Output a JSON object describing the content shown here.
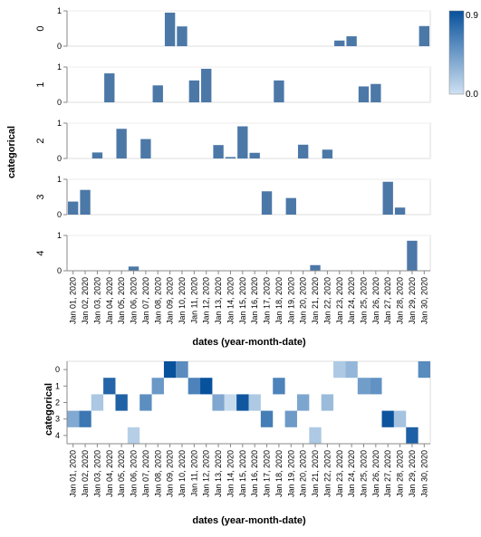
{
  "chart_data": [
    {
      "type": "bar",
      "facet_title": "categorical",
      "xlabel": "dates (year-month-date)",
      "ylim": [
        0,
        1
      ],
      "y_ticks": [
        "0",
        "1"
      ],
      "x": [
        "Jan 01, 2020",
        "Jan 02, 2020",
        "Jan 03, 2020",
        "Jan 04, 2020",
        "Jan 05, 2020",
        "Jan 06, 2020",
        "Jan 07, 2020",
        "Jan 08, 2020",
        "Jan 09, 2020",
        "Jan 10, 2020",
        "Jan 11, 2020",
        "Jan 12, 2020",
        "Jan 13, 2020",
        "Jan 14, 2020",
        "Jan 15, 2020",
        "Jan 16, 2020",
        "Jan 17, 2020",
        "Jan 18, 2020",
        "Jan 19, 2020",
        "Jan 20, 2020",
        "Jan 21, 2020",
        "Jan 22, 2020",
        "Jan 23, 2020",
        "Jan 24, 2020",
        "Jan 25, 2020",
        "Jan 26, 2020",
        "Jan 27, 2020",
        "Jan 28, 2020",
        "Jan 29, 2020",
        "Jan 30, 2020"
      ],
      "series": [
        {
          "name": "0",
          "values": [
            null,
            null,
            null,
            null,
            null,
            null,
            null,
            null,
            0.95,
            0.56,
            null,
            null,
            null,
            null,
            null,
            null,
            null,
            null,
            null,
            null,
            null,
            null,
            0.16,
            0.28,
            null,
            null,
            null,
            null,
            null,
            0.57
          ]
        },
        {
          "name": "1",
          "values": [
            null,
            null,
            null,
            0.82,
            null,
            null,
            null,
            0.48,
            null,
            null,
            0.62,
            0.95,
            null,
            null,
            null,
            null,
            null,
            0.62,
            null,
            null,
            null,
            null,
            null,
            null,
            0.45,
            0.52,
            null,
            null,
            null,
            null
          ]
        },
        {
          "name": "2",
          "values": [
            null,
            null,
            0.17,
            null,
            0.84,
            null,
            0.55,
            null,
            null,
            null,
            null,
            null,
            0.38,
            0.04,
            0.91,
            0.16,
            null,
            null,
            null,
            0.39,
            null,
            0.25,
            null,
            null,
            null,
            null,
            null,
            null,
            null,
            null
          ]
        },
        {
          "name": "3",
          "values": [
            0.37,
            0.7,
            null,
            null,
            null,
            null,
            null,
            null,
            null,
            null,
            null,
            null,
            null,
            null,
            null,
            null,
            0.66,
            null,
            0.47,
            null,
            null,
            null,
            null,
            null,
            null,
            null,
            0.93,
            0.2,
            null,
            null
          ]
        },
        {
          "name": "4",
          "values": [
            null,
            null,
            null,
            null,
            null,
            0.12,
            null,
            null,
            null,
            null,
            null,
            null,
            null,
            null,
            null,
            null,
            null,
            null,
            null,
            null,
            0.16,
            null,
            null,
            null,
            null,
            null,
            null,
            null,
            0.85,
            null
          ]
        }
      ]
    },
    {
      "type": "heatmap",
      "ylabel": "categorical",
      "xlabel": "dates (year-month-date)",
      "y_categories": [
        "0",
        "1",
        "2",
        "3",
        "4"
      ],
      "legend": {
        "min_label": "0.0",
        "max_label": "0.9",
        "color_low": "#cfe1f2",
        "color_high": "#08519c",
        "placement": "top-right"
      }
    }
  ]
}
